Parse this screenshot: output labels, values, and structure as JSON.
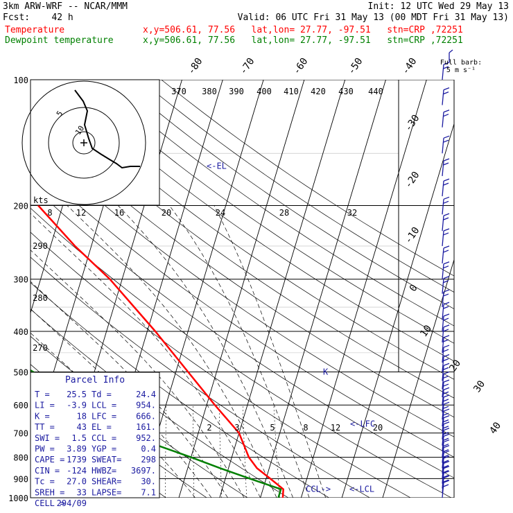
{
  "header": {
    "model": "3km ARW-WRF -- NCAR/MMM",
    "init": "Init: 12 UTC Wed 29 May 13",
    "fcst": "Fcst:    42 h",
    "valid": "Valid: 06 UTC Fri 31 May 13 (00 MDT Fri 31 May 13)",
    "temp_label": "Temperature",
    "temp_info": "x,y=506.61, 77.56   lat,lon= 27.77, -97.51   stn=CRP ,72251",
    "dew_label": "Dewpoint temperature",
    "dew_info": "x,y=506.61, 77.56   lat,lon= 27.77, -97.51   stn=CRP ,72251"
  },
  "colors": {
    "temperature": "#ff0000",
    "dewpoint": "#008000",
    "wind": "#1a1aa0",
    "text_blue": "#1a1aa0",
    "header_red": "#ff0000",
    "header_green": "#008000"
  },
  "barb_legend": {
    "title": "Full barb:",
    "unit": "5 m s⁻¹"
  },
  "hodograph": {
    "unit": "kts",
    "ring_labels": [
      "5",
      "10"
    ]
  },
  "parcel": {
    "title": "Parcel Info",
    "rows": [
      [
        "T  =",
        "25.5",
        "Td =",
        "24.4"
      ],
      [
        "LI =",
        "-3.9",
        "LCL =",
        "954."
      ],
      [
        "K  =",
        "18",
        "LFC =",
        "666."
      ],
      [
        "TT =",
        "43",
        "EL =",
        "161."
      ],
      [
        "SWI =",
        "1.5",
        "CCL =",
        "952."
      ],
      [
        "PW =",
        "3.89",
        "YGP =",
        "0.4"
      ],
      [
        "CAPE =",
        "1739",
        "SWEAT=",
        "298"
      ],
      [
        "CIN =",
        "-124",
        "HWBZ=",
        "3697."
      ],
      [
        "Tc =",
        "27.0",
        "SHEAR=",
        "30."
      ],
      [
        "SREH =",
        "33",
        "LAPSE=",
        "7.1"
      ],
      [
        "CELL =",
        "294/09",
        "",
        ""
      ]
    ]
  },
  "markers": {
    "el": "<-EL",
    "lfc": "<-LFC",
    "lcl": "<-LCL",
    "ccl": "CCL->"
  },
  "chart_data": {
    "type": "line",
    "title": "",
    "xlabel": "Temperature (°C)",
    "ylabel": "Pressure (hPa)",
    "pressure_levels": [
      100,
      200,
      300,
      400,
      500,
      600,
      700,
      800,
      900,
      1000
    ],
    "isotherm_labels": [
      "-80",
      "-70",
      "-60",
      "-50",
      "-40",
      "-30",
      "-20",
      "-10",
      "0",
      "10",
      "20",
      "30",
      "40"
    ],
    "theta_labels": [
      "370",
      "380",
      "390",
      "400",
      "410",
      "420",
      "430",
      "440"
    ],
    "mixing_ratio_labels": [
      "2",
      "3",
      "5",
      "8",
      "12",
      "20"
    ],
    "wetbulb_labels": [
      "8",
      "12",
      "16",
      "20",
      "24",
      "28",
      "32"
    ],
    "theta_side_labels": [
      "290",
      "280",
      "270"
    ],
    "series": [
      {
        "name": "Temperature",
        "points": [
          [
            100,
            -72
          ],
          [
            125,
            -70
          ],
          [
            150,
            -65
          ],
          [
            175,
            -61
          ],
          [
            200,
            -56
          ],
          [
            250,
            -44
          ],
          [
            300,
            -33
          ],
          [
            400,
            -18
          ],
          [
            500,
            -7
          ],
          [
            600,
            2
          ],
          [
            700,
            10
          ],
          [
            800,
            14.2
          ],
          [
            850,
            17
          ],
          [
            900,
            21
          ],
          [
            954,
            25.0
          ],
          [
            1000,
            25.5
          ]
        ]
      },
      {
        "name": "Dewpoint temperature",
        "points": [
          [
            100,
            -85
          ],
          [
            150,
            -90
          ],
          [
            200,
            -90
          ],
          [
            250,
            -85
          ],
          [
            300,
            -80
          ],
          [
            350,
            -75
          ],
          [
            400,
            -65
          ],
          [
            500,
            -45
          ],
          [
            600,
            -26
          ],
          [
            700,
            -14
          ],
          [
            750,
            -9
          ],
          [
            800,
            0
          ],
          [
            850,
            8
          ],
          [
            900,
            16
          ],
          [
            954,
            24.4
          ],
          [
            1000,
            24.4
          ]
        ]
      }
    ],
    "parcel_trace": [
      [
        1000,
        25.5
      ],
      [
        954,
        24.0
      ],
      [
        900,
        21.2
      ],
      [
        800,
        15.5
      ],
      [
        700,
        8.5
      ],
      [
        600,
        0
      ],
      [
        500,
        -10
      ],
      [
        400,
        -24
      ],
      [
        300,
        -43
      ],
      [
        200,
        -66
      ]
    ],
    "wind_pressures": [
      100,
      115,
      130,
      150,
      170,
      190,
      210,
      230,
      250,
      275,
      300,
      325,
      350,
      375,
      400,
      425,
      450,
      475,
      500,
      525,
      550,
      575,
      600,
      625,
      650,
      675,
      700,
      725,
      750,
      775,
      800,
      825,
      850,
      875,
      900,
      925,
      950,
      975,
      1000
    ],
    "hodograph_uv": [
      [
        -2,
        -6
      ],
      [
        -1,
        -3
      ],
      [
        0,
        2
      ],
      [
        -1,
        8
      ],
      [
        2,
        10
      ],
      [
        3,
        13
      ],
      [
        3,
        16
      ],
      [
        6,
        17
      ],
      [
        9,
        20
      ],
      [
        12,
        20
      ],
      [
        15,
        21
      ],
      [
        18,
        21
      ],
      [
        22,
        22
      ],
      [
        26,
        23
      ],
      [
        30,
        23
      ],
      [
        34,
        24
      ]
    ]
  }
}
